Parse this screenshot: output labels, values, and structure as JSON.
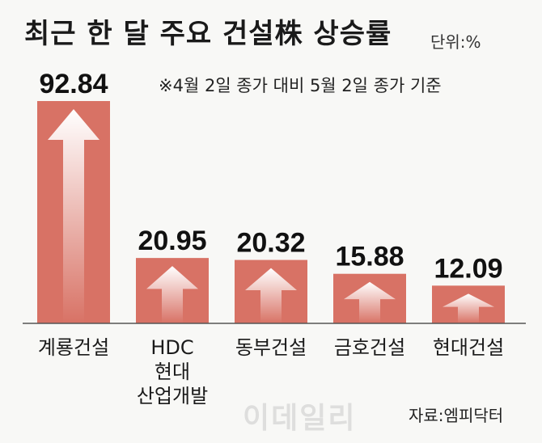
{
  "title": "최근 한 달 주요 건설株 상승률",
  "unit": "단위:%",
  "note": "※4월 2일 종가 대비 5월 2일 종가 기준",
  "source": "자료:엠피닥터",
  "watermark": "이데일리",
  "colors": {
    "bar": "#d87265",
    "arrow": "#ffffff",
    "axis": "#555555"
  },
  "chart_data": {
    "type": "bar",
    "title": "최근 한 달 주요 건설株 상승률",
    "xlabel": "",
    "ylabel": "",
    "categories": [
      [
        "계룡건설"
      ],
      [
        "HDC",
        "현대",
        "산업개발"
      ],
      [
        "동부건설"
      ],
      [
        "금호건설"
      ],
      [
        "현대건설"
      ]
    ],
    "values": [
      92.84,
      20.95,
      20.32,
      15.88,
      12.09
    ],
    "value_labels": [
      "92.84",
      "20.95",
      "20.32",
      "15.88",
      "12.09"
    ],
    "axis_break": true
  }
}
